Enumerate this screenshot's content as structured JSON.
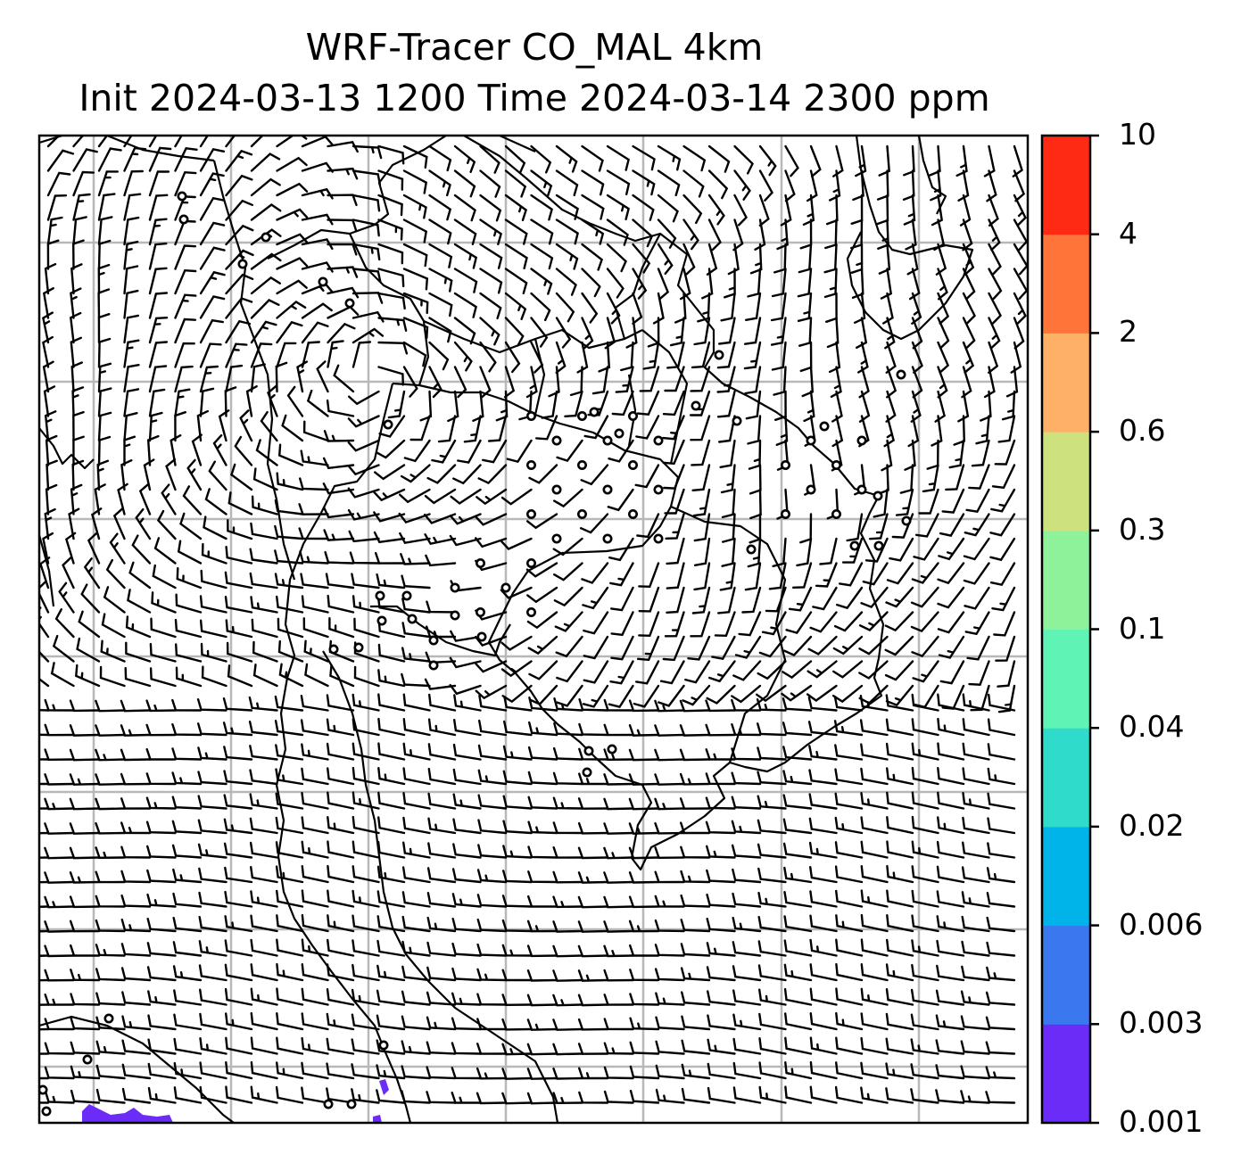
{
  "figure": {
    "title_line1": "WRF-Tracer CO_MAL 4km",
    "title_line2": "Init 2024-03-13 1200 Time 2024-03-14 2300 ppm"
  },
  "colorbar": {
    "levels": [
      "0.001",
      "0.003",
      "0.006",
      "0.02",
      "0.04",
      "0.1",
      "0.3",
      "0.6",
      "2",
      "4",
      "10"
    ],
    "colors": [
      "#6a2cf6",
      "#3a78f0",
      "#00b3e8",
      "#2fdccc",
      "#5ff4b6",
      "#8ef29a",
      "#cde17f",
      "#fdb066",
      "#ff7438",
      "#ff2a14"
    ]
  },
  "map": {
    "gridline_color": "#b8b8b8",
    "coastline_color": "#000000",
    "barb_color": "#000000",
    "tracer_color": "#6a2cf6"
  }
}
